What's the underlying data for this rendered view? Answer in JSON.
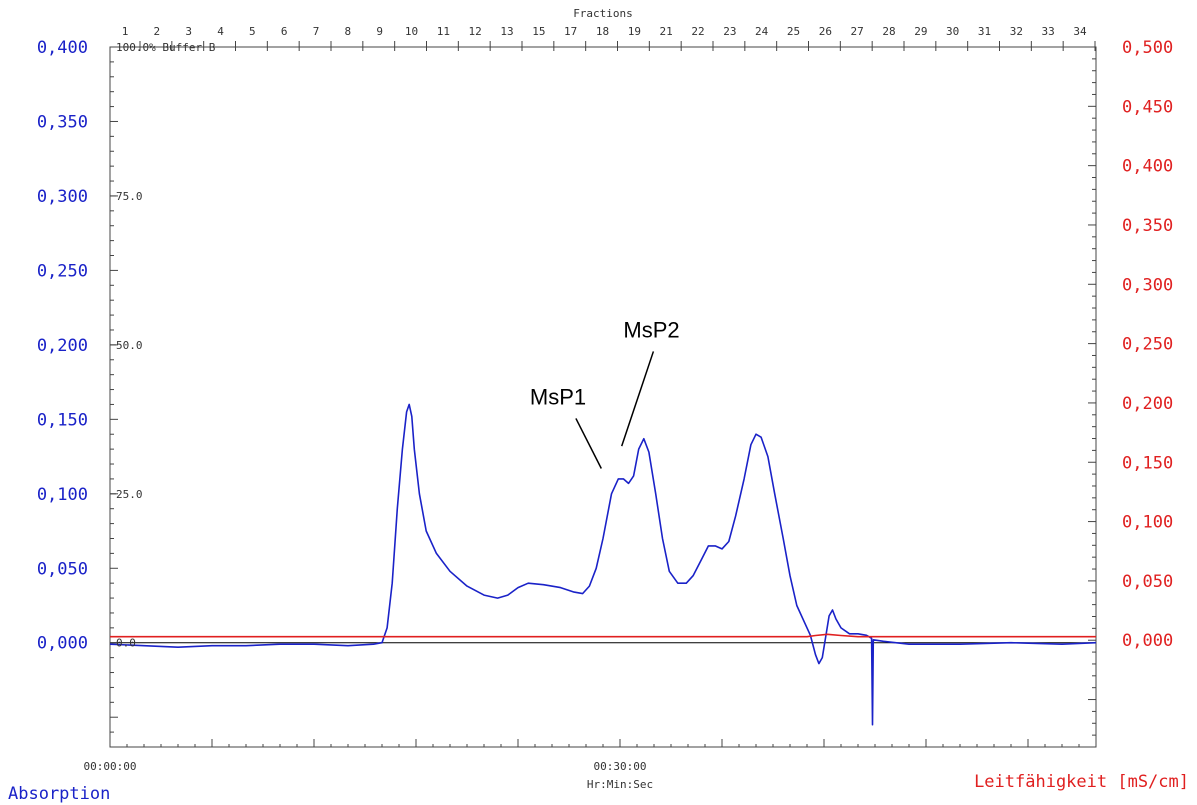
{
  "colors": {
    "absorbance": "#1a22c8",
    "conductivity": "#e02020",
    "axis": "#000000"
  },
  "chart_data": {
    "type": "line",
    "top_axis": {
      "title": "Fractions",
      "labels": [
        "1",
        "2",
        "3",
        "4",
        "5",
        "6",
        "7",
        "8",
        "9",
        "10",
        "11",
        "12",
        "13",
        "15",
        "17",
        "18",
        "19",
        "21",
        "22",
        "23",
        "24",
        "25",
        "26",
        "27",
        "28",
        "29",
        "30",
        "31",
        "32",
        "33",
        "34"
      ]
    },
    "x_axis": {
      "title": "Hr:Min:Sec",
      "range_min": [
        0,
        58
      ],
      "tick_labels": [
        {
          "minutes": 0,
          "label": "00:00:00"
        },
        {
          "minutes": 30,
          "label": "00:30:00"
        }
      ]
    },
    "left_axis": {
      "title": "Absorption",
      "range": [
        -0.07,
        0.4
      ],
      "ticks": [
        {
          "value": 0.4,
          "label": "0,400"
        },
        {
          "value": 0.35,
          "label": "0,350"
        },
        {
          "value": 0.3,
          "label": "0,300"
        },
        {
          "value": 0.25,
          "label": "0,250"
        },
        {
          "value": 0.2,
          "label": "0,200"
        },
        {
          "value": 0.15,
          "label": "0,150"
        },
        {
          "value": 0.1,
          "label": "0,100"
        },
        {
          "value": 0.05,
          "label": "0,050"
        },
        {
          "value": 0.0,
          "label": "0,000"
        }
      ]
    },
    "right_axis": {
      "title": "Leitfähigkeit [mS/cm]",
      "range": [
        -0.09,
        0.5
      ],
      "ticks": [
        {
          "value": 0.5,
          "label": "0,500"
        },
        {
          "value": 0.45,
          "label": "0,450"
        },
        {
          "value": 0.4,
          "label": "0,400"
        },
        {
          "value": 0.35,
          "label": "0,350"
        },
        {
          "value": 0.3,
          "label": "0,300"
        },
        {
          "value": 0.25,
          "label": "0,250"
        },
        {
          "value": 0.2,
          "label": "0,200"
        },
        {
          "value": 0.15,
          "label": "0,150"
        },
        {
          "value": 0.1,
          "label": "0,100"
        },
        {
          "value": 0.05,
          "label": "0,050"
        },
        {
          "value": 0.0,
          "label": "0,000"
        }
      ]
    },
    "buffer_ticks": [
      {
        "value": 0.4,
        "label": "100.0% Buffer B"
      },
      {
        "value": 0.3,
        "label": "75.0"
      },
      {
        "value": 0.2,
        "label": "50.0"
      },
      {
        "value": 0.1,
        "label": "25.0"
      },
      {
        "value": 0.0,
        "label": "0.0"
      }
    ],
    "annotations": [
      {
        "text": "MsP1",
        "text_at": [
          24.7,
          0.16
        ],
        "point_at": [
          28.9,
          0.117
        ]
      },
      {
        "text": "MsP2",
        "text_at": [
          30.2,
          0.205
        ],
        "point_at": [
          30.1,
          0.132
        ]
      }
    ],
    "series": [
      {
        "key": "absorbance",
        "axis": "left",
        "points": [
          [
            0,
            -0.001
          ],
          [
            2,
            -0.002
          ],
          [
            4,
            -0.003
          ],
          [
            6,
            -0.002
          ],
          [
            8,
            -0.002
          ],
          [
            10,
            -0.001
          ],
          [
            12,
            -0.001
          ],
          [
            14,
            -0.002
          ],
          [
            15.5,
            -0.001
          ],
          [
            16,
            0.0
          ],
          [
            16.3,
            0.01
          ],
          [
            16.6,
            0.04
          ],
          [
            16.9,
            0.09
          ],
          [
            17.2,
            0.13
          ],
          [
            17.45,
            0.155
          ],
          [
            17.6,
            0.16
          ],
          [
            17.75,
            0.152
          ],
          [
            17.9,
            0.13
          ],
          [
            18.2,
            0.1
          ],
          [
            18.6,
            0.075
          ],
          [
            19.2,
            0.06
          ],
          [
            20,
            0.048
          ],
          [
            21,
            0.038
          ],
          [
            22,
            0.032
          ],
          [
            22.8,
            0.03
          ],
          [
            23.4,
            0.032
          ],
          [
            24,
            0.037
          ],
          [
            24.6,
            0.04
          ],
          [
            25.5,
            0.039
          ],
          [
            26.5,
            0.037
          ],
          [
            27.3,
            0.034
          ],
          [
            27.8,
            0.033
          ],
          [
            28.2,
            0.038
          ],
          [
            28.6,
            0.05
          ],
          [
            29,
            0.07
          ],
          [
            29.5,
            0.1
          ],
          [
            29.9,
            0.11
          ],
          [
            30.2,
            0.11
          ],
          [
            30.5,
            0.107
          ],
          [
            30.8,
            0.112
          ],
          [
            31.1,
            0.13
          ],
          [
            31.4,
            0.137
          ],
          [
            31.7,
            0.128
          ],
          [
            32.1,
            0.1
          ],
          [
            32.5,
            0.07
          ],
          [
            32.9,
            0.048
          ],
          [
            33.4,
            0.04
          ],
          [
            33.9,
            0.04
          ],
          [
            34.3,
            0.045
          ],
          [
            34.8,
            0.056
          ],
          [
            35.2,
            0.065
          ],
          [
            35.6,
            0.065
          ],
          [
            36,
            0.063
          ],
          [
            36.4,
            0.068
          ],
          [
            36.8,
            0.085
          ],
          [
            37.3,
            0.11
          ],
          [
            37.7,
            0.133
          ],
          [
            38,
            0.14
          ],
          [
            38.3,
            0.138
          ],
          [
            38.7,
            0.125
          ],
          [
            39.1,
            0.1
          ],
          [
            39.6,
            0.07
          ],
          [
            40,
            0.045
          ],
          [
            40.4,
            0.025
          ],
          [
            40.8,
            0.015
          ],
          [
            41.2,
            0.005
          ],
          [
            41.5,
            -0.008
          ],
          [
            41.7,
            -0.014
          ],
          [
            41.9,
            -0.01
          ],
          [
            42.1,
            0.004
          ],
          [
            42.3,
            0.018
          ],
          [
            42.5,
            0.022
          ],
          [
            42.7,
            0.016
          ],
          [
            43,
            0.01
          ],
          [
            43.5,
            0.006
          ],
          [
            44,
            0.006
          ],
          [
            44.5,
            0.005
          ],
          [
            44.8,
            0.003
          ],
          [
            44.85,
            -0.055
          ],
          [
            44.9,
            0.002
          ],
          [
            45.5,
            0.001
          ],
          [
            47,
            -0.001
          ],
          [
            50,
            -0.001
          ],
          [
            53,
            0.0
          ],
          [
            56,
            -0.001
          ],
          [
            58,
            0.0
          ]
        ]
      },
      {
        "key": "conductivity",
        "axis": "right",
        "points": [
          [
            0,
            0.003
          ],
          [
            41,
            0.003
          ],
          [
            41.5,
            0.004
          ],
          [
            42.2,
            0.005
          ],
          [
            43,
            0.004
          ],
          [
            44,
            0.003
          ],
          [
            58,
            0.003
          ]
        ]
      }
    ]
  }
}
